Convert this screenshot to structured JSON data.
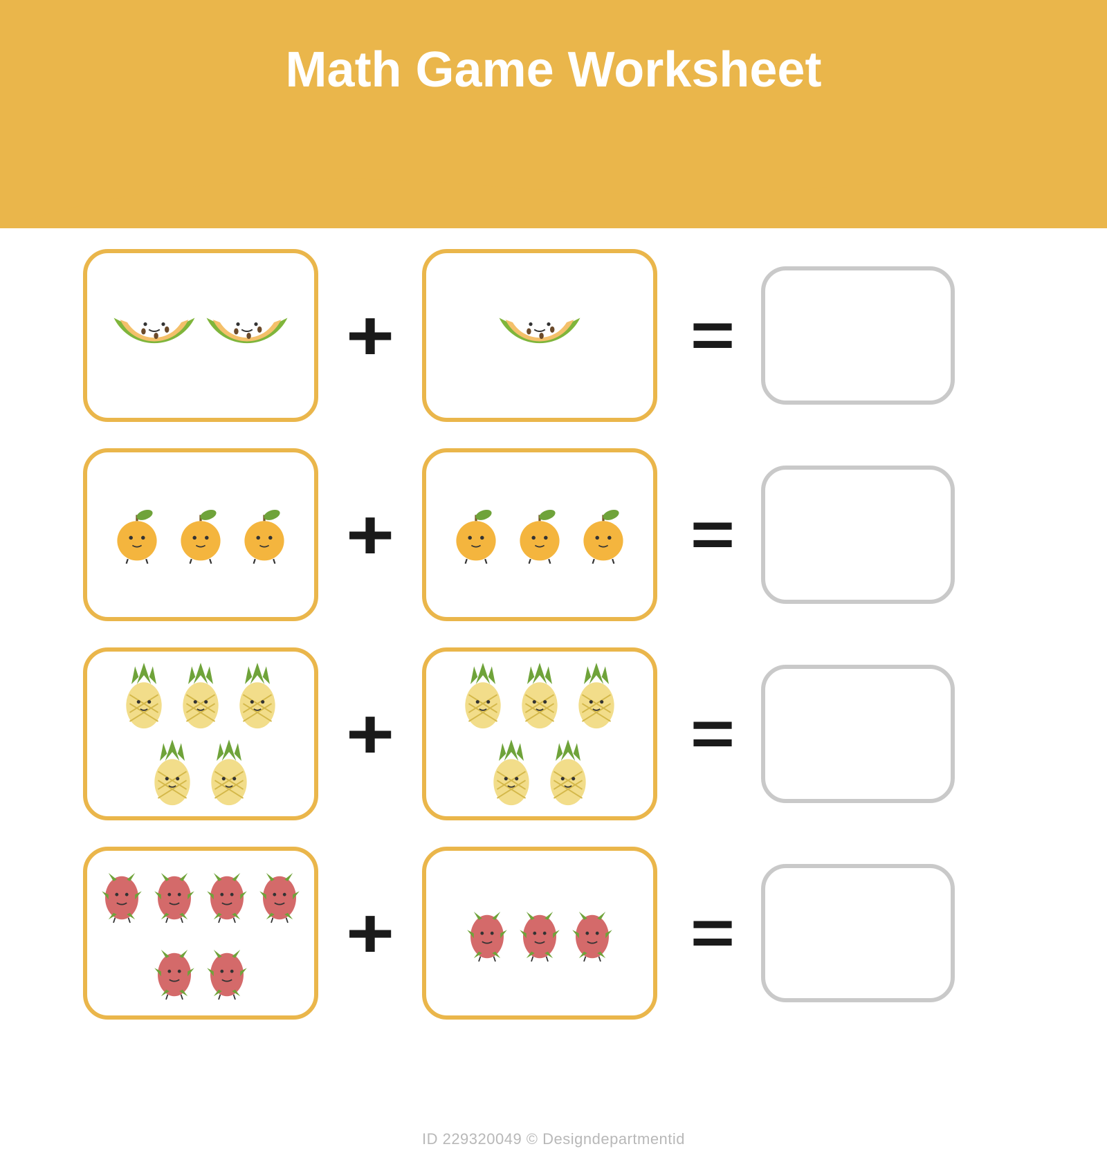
{
  "title": "Math Game Worksheet",
  "colors": {
    "header_band": "#eab64b",
    "box_border": "#eab64b",
    "answer_border": "#c9c9c9",
    "operator": "#1a1a1a",
    "title_text": "#ffffff",
    "background": "#ffffff"
  },
  "operators": {
    "plus": "+",
    "equals": "="
  },
  "fruits": {
    "melon": {
      "rind": "#7fb53b",
      "flesh": "#f4c06a",
      "seed": "#6b4a2a"
    },
    "orange": {
      "body": "#f4b53e",
      "leaf": "#6fa33a",
      "stem": "#7a5a2a"
    },
    "pineapple": {
      "body": "#f2dd8a",
      "pattern": "#d4b84a",
      "leaf": "#6fa33a"
    },
    "dragonfruit": {
      "body": "#d46a6a",
      "leaf": "#6fa33a"
    }
  },
  "problems": [
    {
      "fruit": "melon",
      "left_count": 2,
      "right_count": 1,
      "size": 130
    },
    {
      "fruit": "orange",
      "left_count": 3,
      "right_count": 3,
      "size": 88
    },
    {
      "fruit": "pineapple",
      "left_count": 5,
      "right_count": 5,
      "size": 78
    },
    {
      "fruit": "dragonfruit",
      "left_count": 6,
      "right_count": 3,
      "size": 72
    }
  ],
  "watermark": "ID 229320049 © Designdepartmentid"
}
